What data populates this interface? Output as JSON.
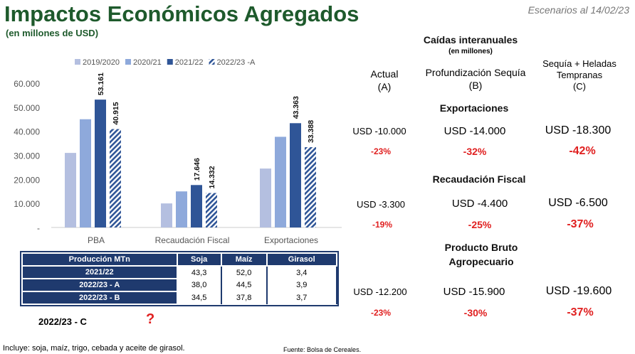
{
  "header": {
    "title": "Impactos Económicos Agregados",
    "subtitle": "(en millones de USD)",
    "scenario": "Escenarios al 14/02/23"
  },
  "chart_data": {
    "type": "bar",
    "categories": [
      "PBA",
      "Recaudación Fiscal",
      "Exportaciones"
    ],
    "series": [
      {
        "name": "2019/2020",
        "values": [
          31000,
          10000,
          24500
        ],
        "color": "#b4bfe0",
        "labels": [
          null,
          null,
          null
        ]
      },
      {
        "name": "2020/21",
        "values": [
          45000,
          15000,
          37700
        ],
        "color": "#8ea9db",
        "labels": [
          null,
          null,
          null
        ]
      },
      {
        "name": "2021/22",
        "values": [
          53161,
          17646,
          43363
        ],
        "color": "#2f5597",
        "labels": [
          "53.161",
          "17.646",
          "43.363"
        ]
      },
      {
        "name": "2022/23 -A",
        "values": [
          40915,
          14332,
          33388
        ],
        "color": "#2f5597",
        "hatched": true,
        "labels": [
          "40.915",
          "14.332",
          "33.388"
        ]
      }
    ],
    "yticks": [
      "-",
      "10.000",
      "20.000",
      "30.000",
      "40.000",
      "50.000",
      "60.000"
    ],
    "ylim": [
      0,
      60000
    ],
    "legend": "top"
  },
  "production": {
    "headers": [
      "Producción MTn",
      "Soja",
      "Maíz",
      "Girasol"
    ],
    "rows": [
      [
        "2021/22",
        "43,3",
        "52,0",
        "3,4"
      ],
      [
        "2022/23 - A",
        "38,0",
        "44,5",
        "3,9"
      ],
      [
        "2022/23 - B",
        "34,5",
        "37,8",
        "3,7"
      ]
    ],
    "c_label": "2022/23 - C",
    "c_value": "?"
  },
  "footer": {
    "note": "Incluye: soja, maíz, trigo, cebada y aceite de girasol.",
    "source": "Fuente: Bolsa de Cereales."
  },
  "panel": {
    "title": "Caídas interanuales",
    "subtitle": "(en millones)",
    "cols": [
      [
        "Actual",
        "(A)"
      ],
      [
        "Profundización Sequía",
        "(B)"
      ],
      [
        "Sequía + Heladas",
        "Tempranas",
        "(C)"
      ]
    ],
    "sections": [
      {
        "name": "Exportaciones",
        "usd": [
          "USD -10.000",
          "USD -14.000",
          "USD -18.300"
        ],
        "pct": [
          "-23%",
          "-32%",
          "-42%"
        ]
      },
      {
        "name": "Recaudación Fiscal",
        "usd": [
          "USD -3.300",
          "USD -4.400",
          "USD -6.500"
        ],
        "pct": [
          "-19%",
          "-25%",
          "-37%"
        ]
      },
      {
        "name": "Producto Bruto Agropecuario",
        "name2": "Agropecuario",
        "name1": "Producto Bruto",
        "usd": [
          "USD -12.200",
          "USD -15.900",
          "USD -19.600"
        ],
        "pct": [
          "-23%",
          "-30%",
          "-37%"
        ]
      }
    ]
  }
}
